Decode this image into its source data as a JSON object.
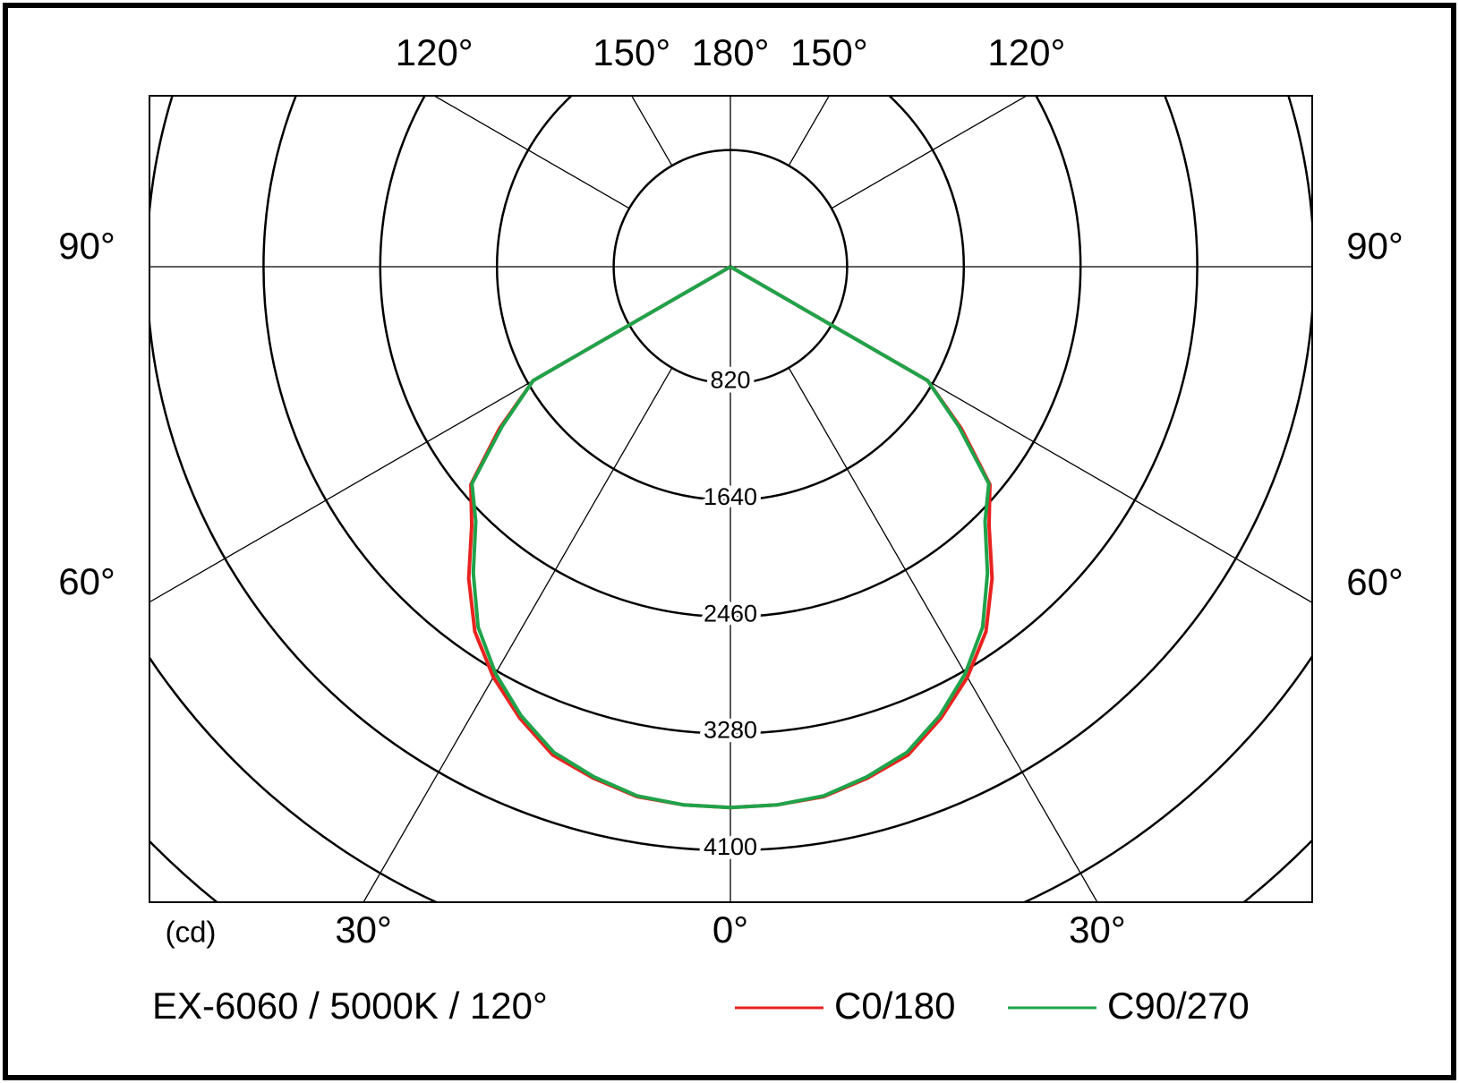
{
  "chart_data": {
    "type": "polar",
    "title": "EX-6060 / 5000K / 120°",
    "r_label": "(cd)",
    "theta": [
      0,
      5,
      10,
      15,
      20,
      25,
      30,
      35,
      40,
      45,
      50,
      55,
      60,
      65,
      70,
      75,
      80,
      85,
      90
    ],
    "thetaticks": [
      {
        "value": 0,
        "label": "0°"
      },
      {
        "value": 30,
        "label": "30°"
      },
      {
        "value": 60,
        "label": "60°"
      },
      {
        "value": 90,
        "label": "90°"
      },
      {
        "value": 120,
        "label": "120°"
      },
      {
        "value": 150,
        "label": "150°"
      },
      {
        "value": 180,
        "label": "180°"
      }
    ],
    "rticks": [
      820,
      1640,
      2460,
      3280,
      4100
    ],
    "series": [
      {
        "name": "C0/180",
        "color": "#e8231f",
        "values": [
          3800,
          3795,
          3780,
          3720,
          3650,
          3500,
          3330,
          3130,
          2860,
          2570,
          2380,
          1980,
          1600,
          0,
          0,
          0,
          0,
          0,
          0
        ]
      },
      {
        "name": "C90/270",
        "color": "#1fa34a",
        "values": [
          3800,
          3795,
          3775,
          3710,
          3630,
          3480,
          3300,
          3090,
          2810,
          2530,
          2370,
          1960,
          1600,
          0,
          0,
          0,
          0,
          0,
          0
        ]
      }
    ]
  }
}
